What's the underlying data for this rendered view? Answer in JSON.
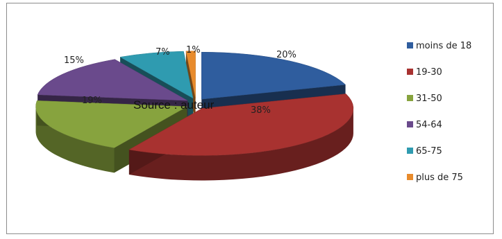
{
  "chart_data": {
    "type": "pie",
    "style": "3d-exploded",
    "categories": [
      "moins de 18",
      "19-30",
      "31-50",
      "54-64",
      "65-75",
      "plus de 75"
    ],
    "values": [
      20,
      38,
      19,
      15,
      7,
      1
    ],
    "labels": [
      "20%",
      "38%",
      "19%",
      "15%",
      "7%",
      "1%"
    ],
    "colors": [
      "#2f5d9e",
      "#a83230",
      "#87a33e",
      "#6a4a8c",
      "#2f9bb0",
      "#e88b2c"
    ],
    "legend_position": "right",
    "annotation": "Source : auteur"
  }
}
